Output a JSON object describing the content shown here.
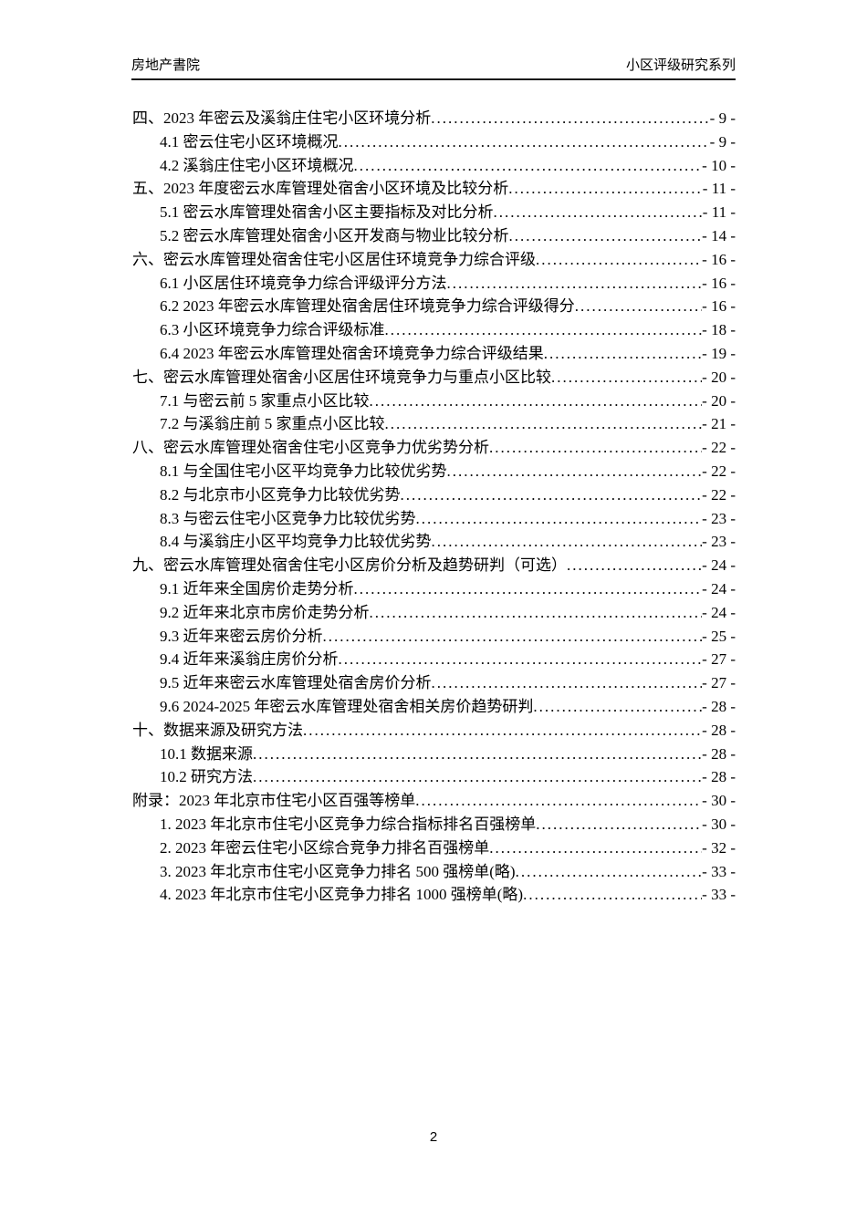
{
  "header": {
    "left_title": "房地产書院",
    "right_title": "小区评级研究系列"
  },
  "toc": {
    "entries": [
      {
        "level": 1,
        "label": "四、2023 年密云及溪翁庄住宅小区环境分析",
        "page": "- 9 -"
      },
      {
        "level": 2,
        "label": "4.1 密云住宅小区环境概况",
        "page": "- 9 -"
      },
      {
        "level": 2,
        "label": "4.2 溪翁庄住宅小区环境概况",
        "page": "- 10 -"
      },
      {
        "level": 1,
        "label": "五、2023 年度密云水库管理处宿舍小区环境及比较分析",
        "page": "- 11 -"
      },
      {
        "level": 2,
        "label": "5.1 密云水库管理处宿舍小区主要指标及对比分析",
        "page": "- 11 -"
      },
      {
        "level": 2,
        "label": "5.2 密云水库管理处宿舍小区开发商与物业比较分析",
        "page": "- 14 -"
      },
      {
        "level": 1,
        "label": "六、密云水库管理处宿舍住宅小区居住环境竞争力综合评级",
        "page": "- 16 -"
      },
      {
        "level": 2,
        "label": "6.1 小区居住环境竞争力综合评级评分方法",
        "page": "- 16 -"
      },
      {
        "level": 2,
        "label": "6.2 2023 年密云水库管理处宿舍居住环境竞争力综合评级得分",
        "page": "- 16 -"
      },
      {
        "level": 2,
        "label": "6.3 小区环境竞争力综合评级标准",
        "page": "- 18 -"
      },
      {
        "level": 2,
        "label": "6.4 2023 年密云水库管理处宿舍环境竞争力综合评级结果",
        "page": "- 19 -"
      },
      {
        "level": 1,
        "label": "七、密云水库管理处宿舍小区居住环境竞争力与重点小区比较",
        "page": "- 20 -"
      },
      {
        "level": 2,
        "label": "7.1 与密云前 5 家重点小区比较",
        "page": "- 20 -"
      },
      {
        "level": 2,
        "label": "7.2 与溪翁庄前 5 家重点小区比较",
        "page": "- 21 -"
      },
      {
        "level": 1,
        "label": "八、密云水库管理处宿舍住宅小区竞争力优劣势分析",
        "page": "- 22 -"
      },
      {
        "level": 2,
        "label": "8.1 与全国住宅小区平均竞争力比较优劣势",
        "page": "- 22 -"
      },
      {
        "level": 2,
        "label": "8.2 与北京市小区竞争力比较优劣势",
        "page": "- 22 -"
      },
      {
        "level": 2,
        "label": "8.3 与密云住宅小区竞争力比较优劣势",
        "page": "- 23 -"
      },
      {
        "level": 2,
        "label": "8.4 与溪翁庄小区平均竞争力比较优劣势",
        "page": "- 23 -"
      },
      {
        "level": 1,
        "label": "九、密云水库管理处宿舍住宅小区房价分析及趋势研判（可选）",
        "page": "- 24 -"
      },
      {
        "level": 2,
        "label": "9.1 近年来全国房价走势分析",
        "page": "- 24 -"
      },
      {
        "level": 2,
        "label": "9.2 近年来北京市房价走势分析",
        "page": "- 24 -"
      },
      {
        "level": 2,
        "label": "9.3 近年来密云房价分析",
        "page": "- 25 -"
      },
      {
        "level": 2,
        "label": "9.4 近年来溪翁庄房价分析",
        "page": "- 27 -"
      },
      {
        "level": 2,
        "label": "9.5 近年来密云水库管理处宿舍房价分析",
        "page": "- 27 -"
      },
      {
        "level": 2,
        "label": "9.6 2024-2025 年密云水库管理处宿舍相关房价趋势研判",
        "page": "- 28 -"
      },
      {
        "level": 1,
        "label": "十、数据来源及研究方法",
        "page": "- 28 -"
      },
      {
        "level": 2,
        "label": "10.1 数据来源",
        "page": "- 28 -"
      },
      {
        "level": 2,
        "label": "10.2 研究方法",
        "page": "- 28 -"
      },
      {
        "level": 1,
        "label": "附录：2023 年北京市住宅小区百强等榜单",
        "page": "- 30 -"
      },
      {
        "level": 2,
        "label": "1. 2023 年北京市住宅小区竞争力综合指标排名百强榜单",
        "page": "- 30 -"
      },
      {
        "level": 2,
        "label": "2. 2023 年密云住宅小区综合竞争力排名百强榜单",
        "page": "- 32 -"
      },
      {
        "level": 2,
        "label": "3. 2023 年北京市住宅小区竞争力排名 500 强榜单(略)",
        "page": "- 33 -"
      },
      {
        "level": 2,
        "label": "4. 2023 年北京市住宅小区竞争力排名 1000 强榜单(略)",
        "page": "- 33 -"
      }
    ]
  },
  "footer": {
    "page_number": "2"
  }
}
